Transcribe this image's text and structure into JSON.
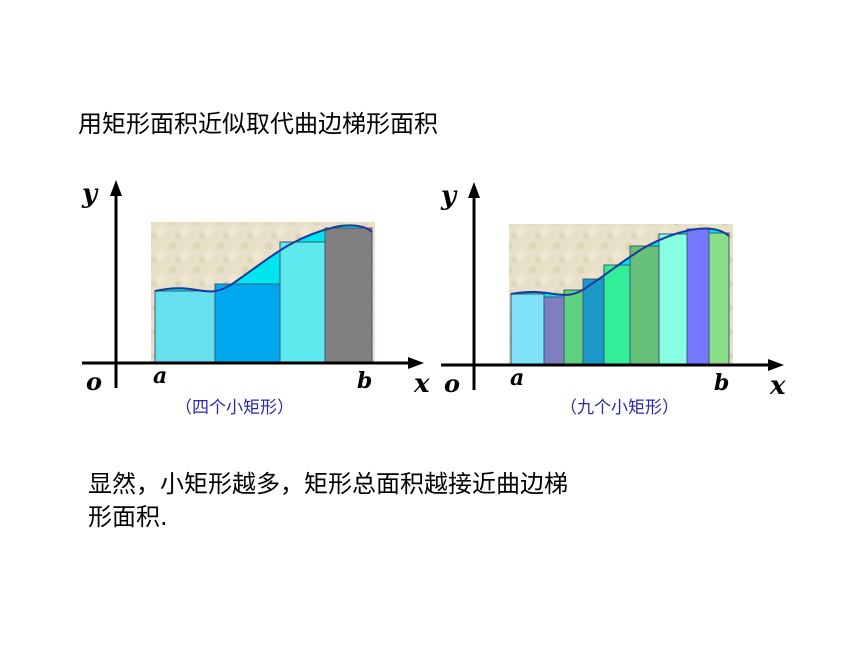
{
  "title": "用矩形面积近似取代曲边梯形面积",
  "conclusion_line1": "显然，小矩形越多，矩形总面积越接近曲边梯",
  "conclusion_line2": "形面积.",
  "diagrams": [
    {
      "caption": "（四个小矩形）",
      "y_label": "y",
      "x_label": "x",
      "origin_label": "o",
      "a_label": "a",
      "b_label": "b",
      "rectangle_count": 4,
      "rect_colors": [
        "#66e0ee",
        "#00a8f0",
        "#5eeaee",
        "#808080"
      ]
    },
    {
      "caption": "（九个小矩形）",
      "y_label": "y",
      "x_label": "x",
      "origin_label": "o",
      "a_label": "a",
      "b_label": "b",
      "rectangle_count": 9,
      "rect_colors": [
        "#7fe2f6",
        "#7f7fbf",
        "#5fd07f",
        "#1a98c8",
        "#33ee99",
        "#66c07a",
        "#88ffe0",
        "#7777ff",
        "#88e088"
      ]
    }
  ],
  "colors": {
    "curve_fill": "#00e5ee",
    "curve_stroke": "#1a3a9a",
    "caption": "#2a2aa8"
  }
}
